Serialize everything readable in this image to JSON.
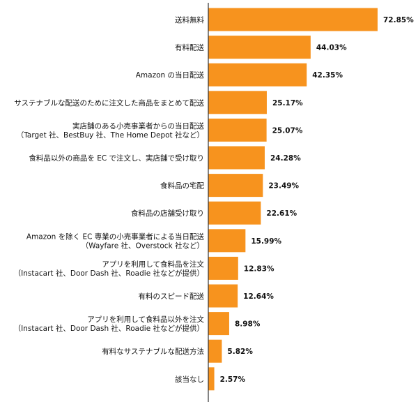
{
  "chart_data": {
    "type": "bar",
    "orientation": "horizontal",
    "bar_color": "#F7931E",
    "xlim": [
      0,
      100
    ],
    "grid": false,
    "categories": [
      [
        "送料無料"
      ],
      [
        "有料配送"
      ],
      [
        "Amazon の当日配送"
      ],
      [
        "サステナブルな配送のために注文した商品をまとめて配送"
      ],
      [
        "実店舗のある小売事業者からの当日配送",
        "（Target 社、BestBuy 社、The Home Depot 社など）"
      ],
      [
        "食料品以外の商品を EC で注文し、実店舗で受け取り"
      ],
      [
        "食料品の宅配"
      ],
      [
        "食料品の店舗受け取り"
      ],
      [
        "Amazon を除く EC 専業の小売事業者による当日配送",
        "（Wayfare 社、Overstock 社など）"
      ],
      [
        "アプリを利用して食料品を注文",
        "（Instacart 社、Door Dash 社、Roadie 社などが提供）"
      ],
      [
        "有料のスピード配送"
      ],
      [
        "アプリを利用して食料品以外を注文",
        "（Instacart 社、Door Dash 社、Roadie 社などが提供）"
      ],
      [
        "有料なサステナブルな配送方法"
      ],
      [
        "該当なし"
      ]
    ],
    "values": [
      72.85,
      44.03,
      42.35,
      25.17,
      25.07,
      24.28,
      23.49,
      22.61,
      15.99,
      12.83,
      12.64,
      8.98,
      5.82,
      2.57
    ],
    "value_labels": [
      "72.85%",
      "44.03%",
      "42.35%",
      "25.17%",
      "25.07%",
      "24.28%",
      "23.49%",
      "22.61%",
      "15.99%",
      "12.83%",
      "12.64%",
      "8.98%",
      "5.82%",
      "2.57%"
    ]
  }
}
